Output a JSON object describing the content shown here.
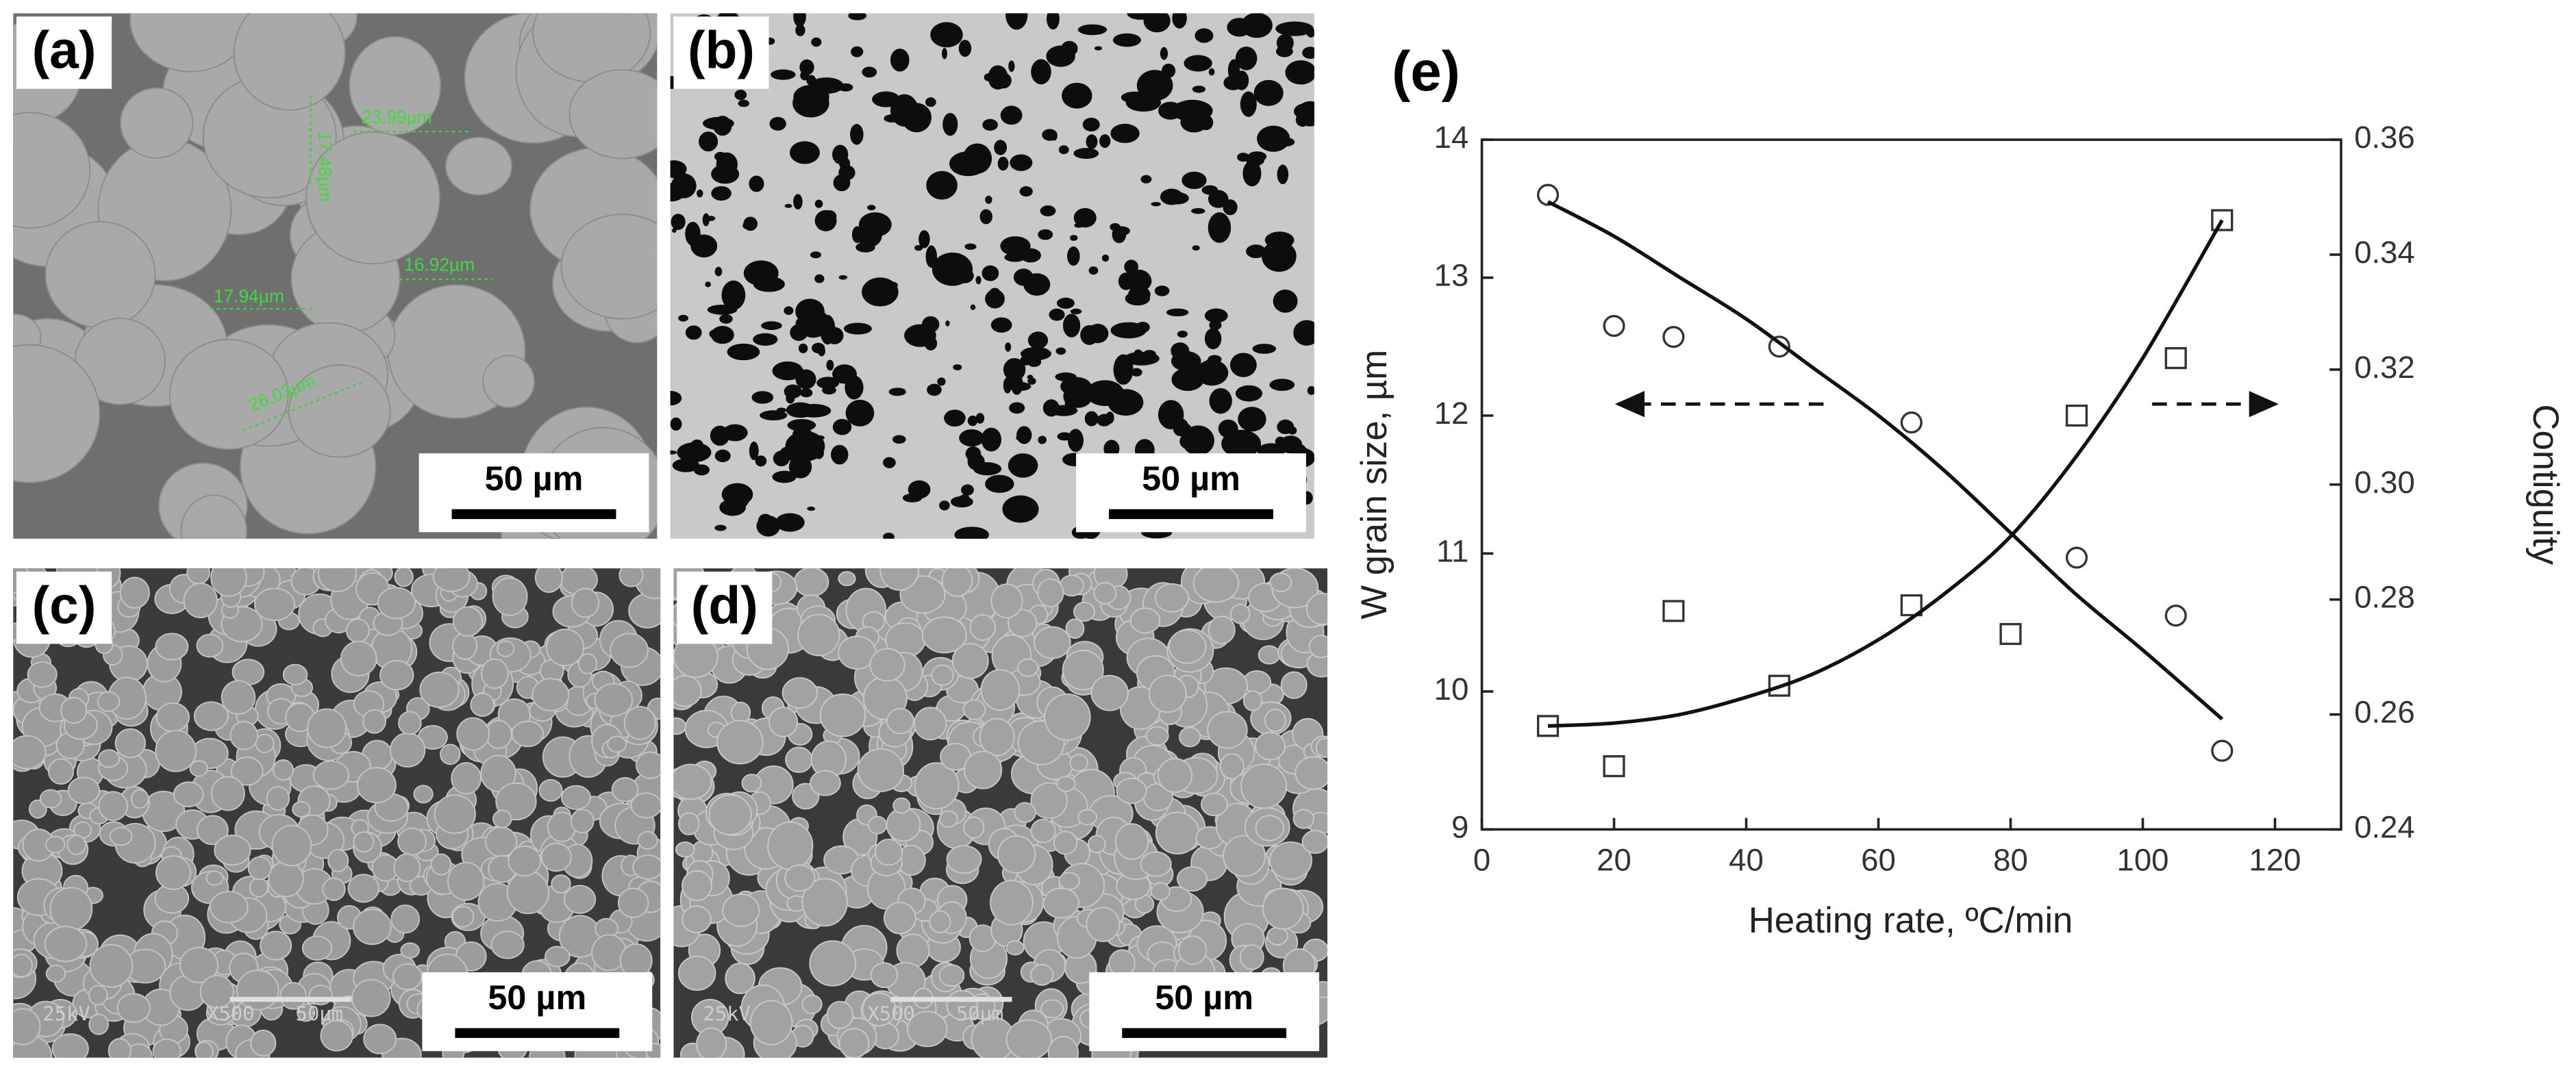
{
  "panels": [
    {
      "label": "(a)",
      "scale": "50 µm",
      "measurements": [
        "23.99µm",
        "17.48µm",
        "17.94µm",
        "16.92µm",
        "26.03µm"
      ]
    },
    {
      "label": "(b)",
      "scale": "50 µm"
    },
    {
      "label": "(c)",
      "scale": "50 µm",
      "footer": [
        "25kV",
        "X500",
        "50µm"
      ]
    },
    {
      "label": "(d)",
      "scale": "50 µm",
      "footer": [
        "25kV",
        "X500",
        "50µm"
      ]
    }
  ],
  "chart_data": {
    "type": "scatter",
    "panel_label": "(e)",
    "x_label": "Heating rate, ºC/min",
    "y_label": "W grain size, µm",
    "y2_label": "Contiguity",
    "xlim": [
      0,
      130
    ],
    "xticks": [
      0,
      20,
      40,
      60,
      80,
      100,
      120
    ],
    "ylim": [
      9,
      14
    ],
    "yticks": [
      9,
      10,
      11,
      12,
      13,
      14
    ],
    "y2lim": [
      0.24,
      0.36
    ],
    "y2ticks": [
      0.24,
      0.26,
      0.28,
      {
        "value": 0.3,
        "label": "0.30"
      },
      0.32,
      0.34,
      0.36
    ],
    "series": [
      {
        "marker": "circle",
        "color": "#333333",
        "x": [
          10,
          20,
          29,
          45,
          65,
          90,
          105,
          112
        ],
        "values": [
          13.6,
          12.65,
          12.57,
          12.5,
          11.95,
          10.97,
          10.55,
          9.57
        ]
      },
      {
        "marker": "square",
        "color": "#333333",
        "axis": "y2",
        "x": [
          10,
          20,
          29,
          45,
          65,
          80,
          90,
          105,
          112
        ],
        "values": [
          0.258,
          0.251,
          0.278,
          0.265,
          0.279,
          0.274,
          0.312,
          0.322,
          0.346
        ]
      },
      {
        "marker": "none",
        "color": "#111111",
        "x": [
          10,
          20,
          30,
          40,
          50,
          60,
          70,
          80,
          90,
          100,
          112
        ],
        "values": [
          13.55,
          13.3,
          13.0,
          12.7,
          12.35,
          12.0,
          11.6,
          11.15,
          10.7,
          10.3,
          9.8
        ]
      },
      {
        "marker": "none",
        "color": "#111111",
        "axis": "y2",
        "x": [
          10,
          20,
          30,
          40,
          50,
          60,
          70,
          80,
          90,
          100,
          112
        ],
        "values": [
          0.258,
          0.2585,
          0.26,
          0.263,
          0.267,
          0.273,
          0.281,
          0.291,
          0.305,
          0.322,
          0.346
        ]
      }
    ]
  }
}
